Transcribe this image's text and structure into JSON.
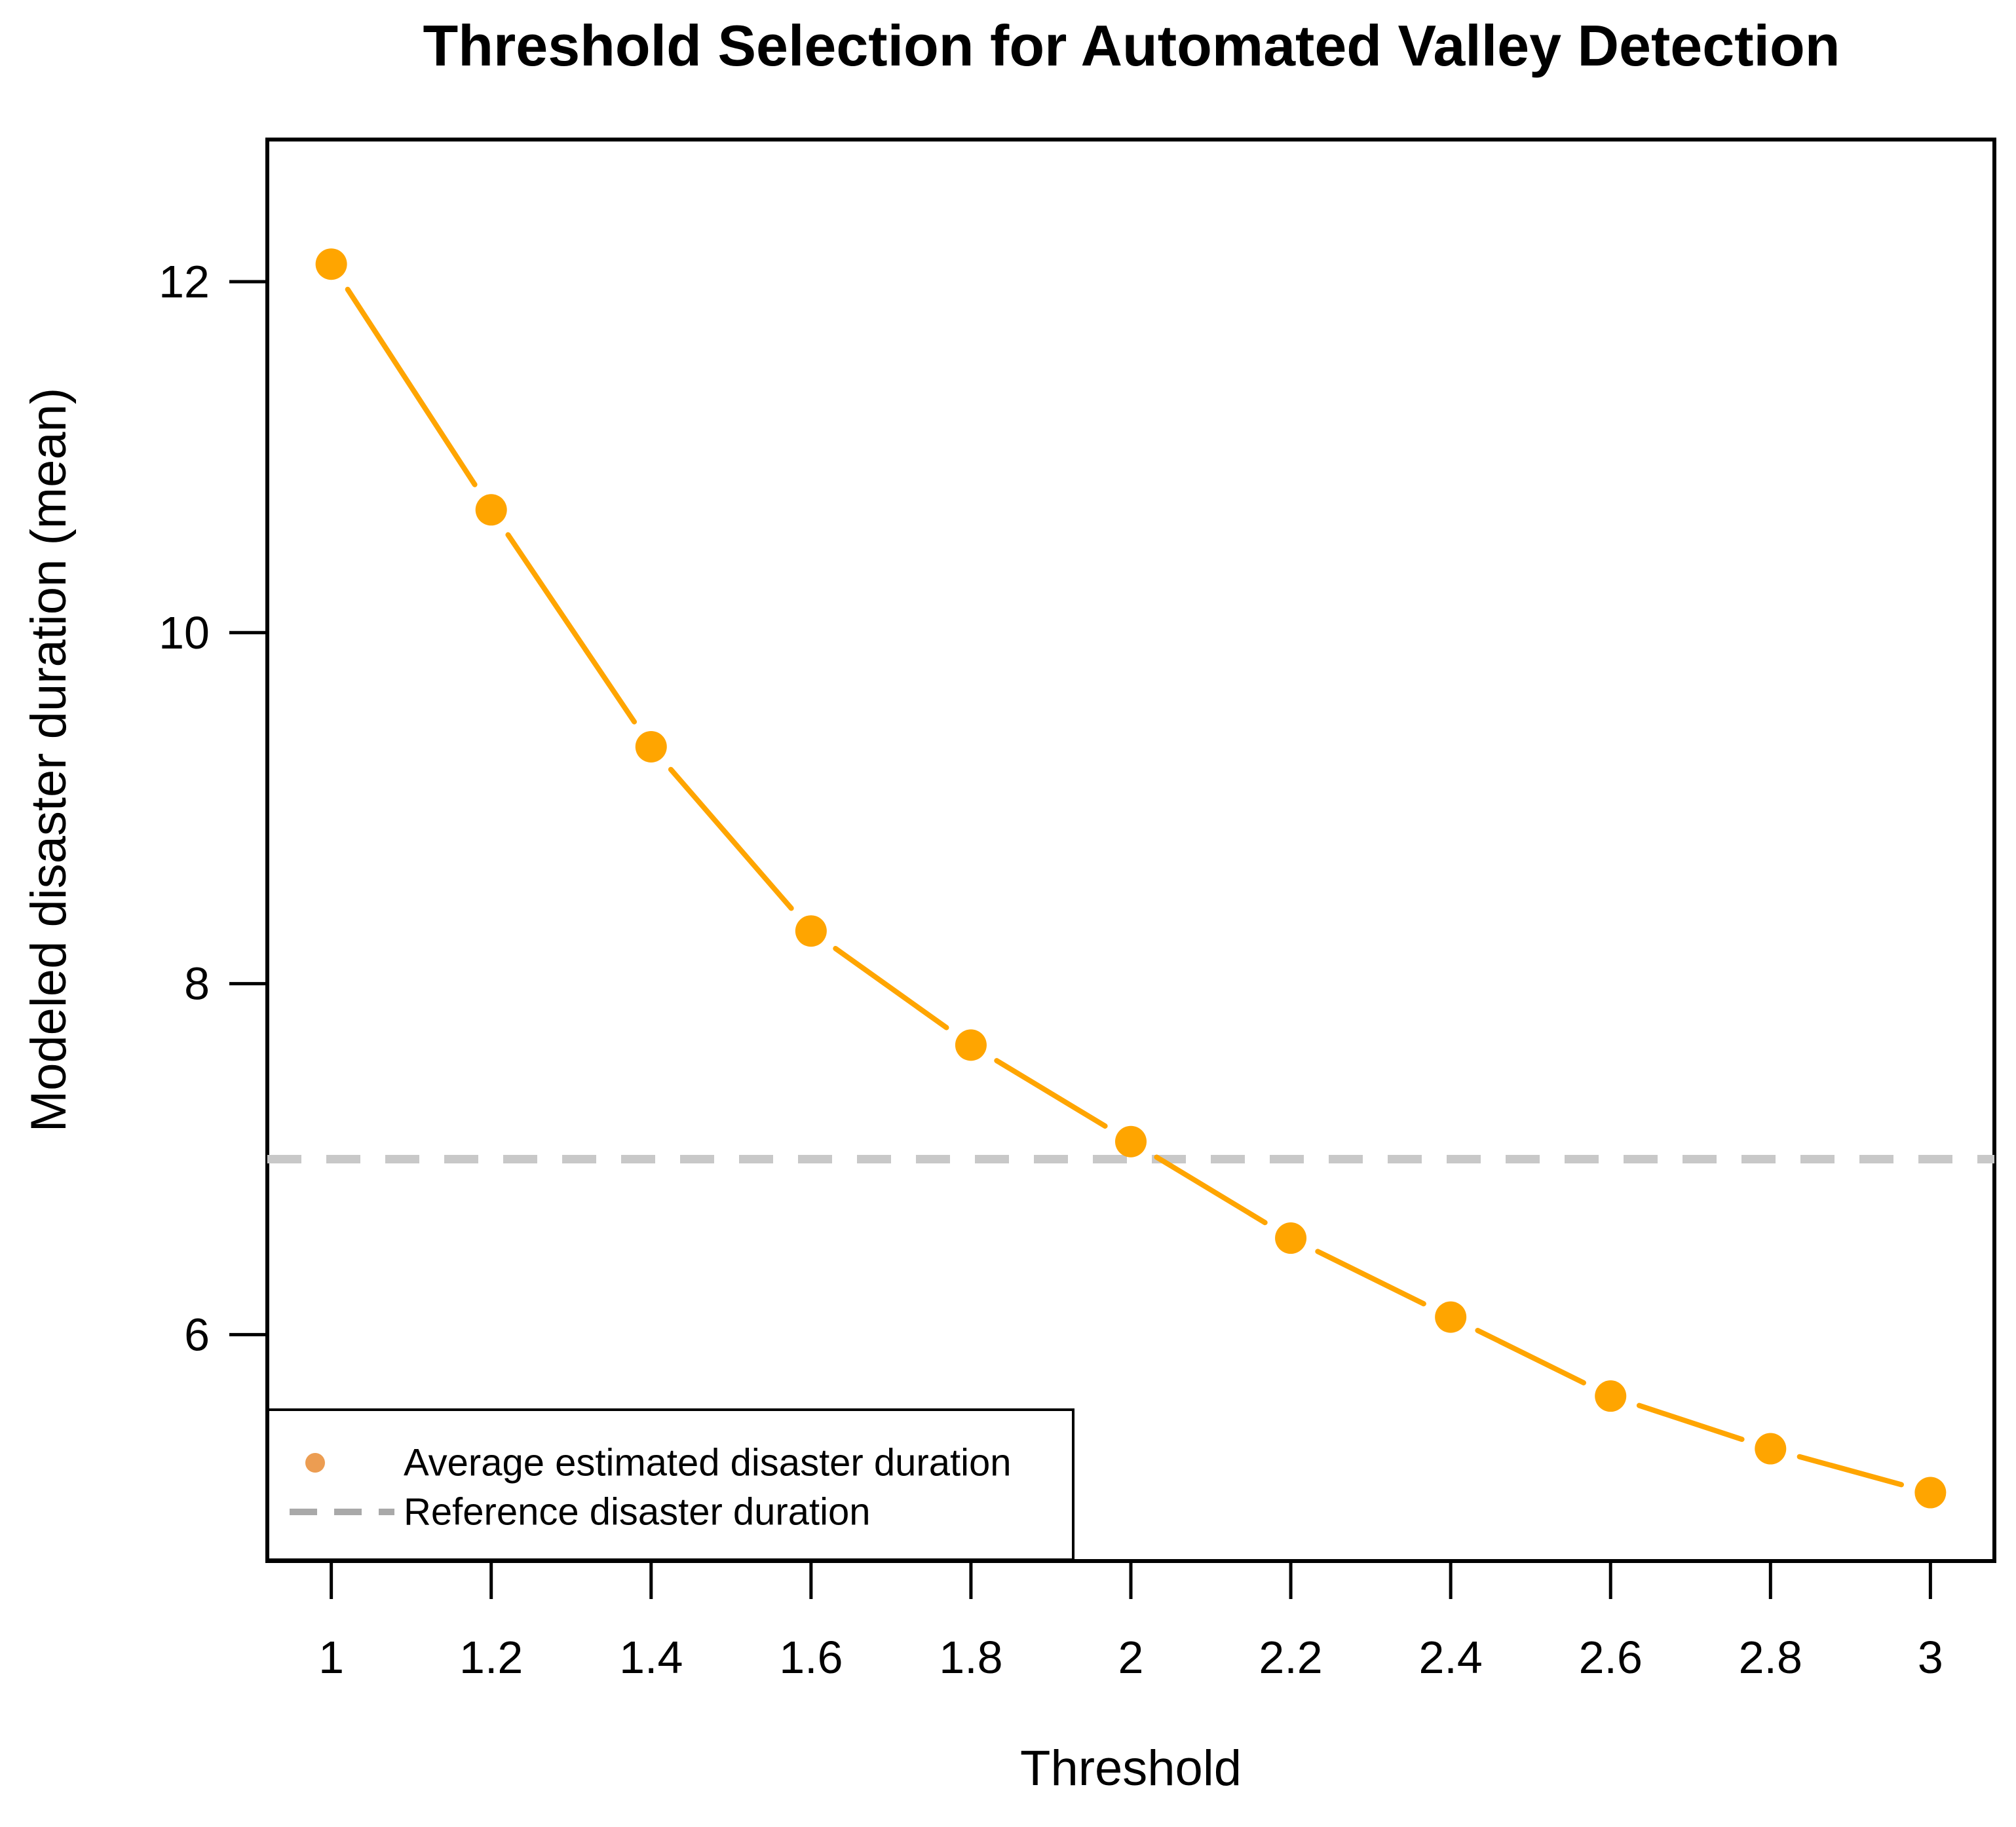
{
  "title": "Threshold Selection for Automated Valley Detection",
  "axes": {
    "x": {
      "label": "Threshold"
    },
    "y": {
      "label": "Modeled disaster duration (mean)"
    }
  },
  "legend": {
    "items": [
      {
        "label": "Average estimated disaster duration",
        "marker": "point",
        "color": "#EC9D52"
      },
      {
        "label": "Reference disaster duration",
        "marker": "dashed-line",
        "color": "#A9A9A9"
      }
    ]
  },
  "chart_data": {
    "type": "line",
    "title": "Threshold Selection for Automated Valley Detection",
    "xlabel": "Threshold",
    "ylabel": "Modeled disaster duration (mean)",
    "x": [
      1,
      1.2,
      1.4,
      1.6,
      1.8,
      2,
      2.2,
      2.4,
      2.6,
      2.8,
      3
    ],
    "series": [
      {
        "name": "Average estimated disaster duration",
        "values": [
          12.1,
          10.7,
          9.35,
          8.3,
          7.65,
          7.1,
          6.55,
          6.1,
          5.65,
          5.35,
          5.1
        ],
        "color": "#FFA500",
        "marker": "circle",
        "line_style": "solid"
      }
    ],
    "reference_line": {
      "value": 7,
      "label": "Reference disaster duration",
      "style": "dashed",
      "color": "#C8C8C8"
    },
    "x_ticks": [
      1,
      1.2,
      1.4,
      1.6,
      1.8,
      2,
      2.2,
      2.4,
      2.6,
      2.8,
      3
    ],
    "y_ticks": [
      6,
      8,
      10,
      12
    ],
    "xlim": [
      0.92,
      3.08
    ],
    "ylim": [
      4.71,
      12.81
    ],
    "grid": false,
    "legend_position": "bottom-left"
  }
}
